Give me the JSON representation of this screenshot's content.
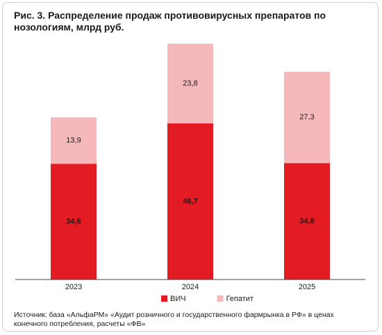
{
  "chart_data": {
    "type": "stacked_bar",
    "title": "Рис. 3. Распределение продаж противовирусных препаратов по нозологиям, млрд руб.",
    "categories": [
      "2023",
      "2024",
      "2025"
    ],
    "series": [
      {
        "name": "ВИЧ",
        "color": "#e31b23",
        "values": [
          34.6,
          46.7,
          34.8
        ],
        "value_labels": [
          "34,6",
          "46,7",
          "34,8"
        ]
      },
      {
        "name": "Гепатит",
        "color": "#f5b8bb",
        "values": [
          13.9,
          23.8,
          27.3
        ],
        "value_labels": [
          "13,9",
          "23,8",
          "27,3"
        ]
      }
    ],
    "source": "Источник: база «АльфаРМ» «Аудит розничного и государственного фармрынка в РФ» в ценах конечного потребления, расчеты «ФВ»"
  }
}
